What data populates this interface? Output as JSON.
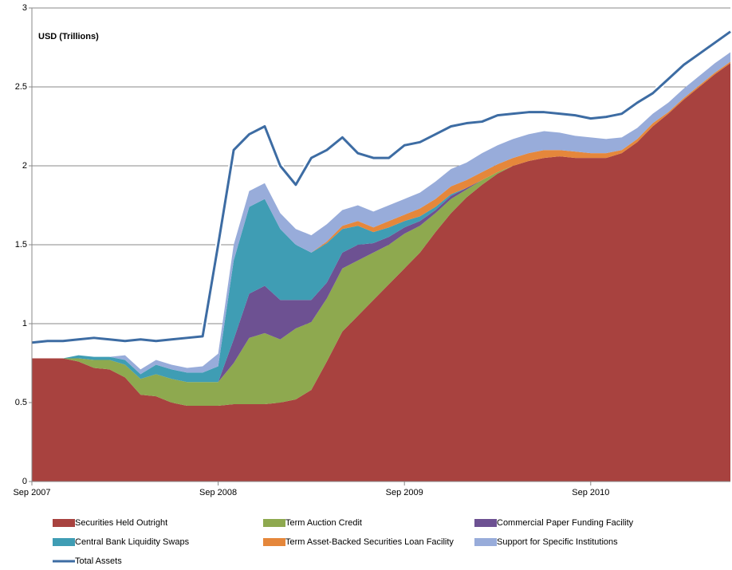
{
  "chart_data": {
    "type": "area",
    "stacked": true,
    "axis_label": "USD (Trillions)",
    "categories": [
      "Sep 2007",
      null,
      null,
      null,
      null,
      null,
      null,
      null,
      null,
      null,
      null,
      null,
      "Sep 2008",
      null,
      null,
      null,
      null,
      null,
      null,
      null,
      null,
      null,
      null,
      null,
      "Sep 2009",
      null,
      null,
      null,
      null,
      null,
      null,
      null,
      null,
      null,
      null,
      null,
      "Sep 2010",
      null,
      null,
      null,
      null,
      null,
      null,
      null,
      null,
      null
    ],
    "ylim": [
      0,
      3
    ],
    "yticks": [
      0,
      0.5,
      1,
      1.5,
      2,
      2.5,
      3
    ],
    "grid": true,
    "series": [
      {
        "name": "Securities Held Outright",
        "color": "#a8423f",
        "values": [
          0.78,
          0.78,
          0.78,
          0.76,
          0.72,
          0.71,
          0.66,
          0.55,
          0.54,
          0.5,
          0.48,
          0.48,
          0.48,
          0.49,
          0.49,
          0.49,
          0.5,
          0.52,
          0.58,
          0.76,
          0.95,
          1.05,
          1.15,
          1.25,
          1.35,
          1.45,
          1.58,
          1.7,
          1.8,
          1.88,
          1.95,
          2.0,
          2.03,
          2.05,
          2.06,
          2.05,
          2.05,
          2.05,
          2.08,
          2.15,
          2.25,
          2.33,
          2.42,
          2.5,
          2.58,
          2.65
        ]
      },
      {
        "name": "Term Auction Credit",
        "color": "#8ea94f",
        "values": [
          0,
          0,
          0,
          0.02,
          0.05,
          0.06,
          0.08,
          0.1,
          0.14,
          0.15,
          0.15,
          0.15,
          0.15,
          0.26,
          0.42,
          0.45,
          0.4,
          0.45,
          0.43,
          0.4,
          0.4,
          0.35,
          0.3,
          0.25,
          0.22,
          0.17,
          0.12,
          0.09,
          0.05,
          0.03,
          0.01,
          0,
          0,
          0,
          0,
          0,
          0,
          0,
          0,
          0,
          0,
          0,
          0,
          0,
          0,
          0
        ]
      },
      {
        "name": "Commercial Paper Funding Facility",
        "color": "#6d5192",
        "values": [
          0,
          0,
          0,
          0,
          0,
          0,
          0,
          0,
          0,
          0,
          0,
          0,
          0,
          0.15,
          0.28,
          0.3,
          0.25,
          0.18,
          0.14,
          0.1,
          0.1,
          0.1,
          0.06,
          0.05,
          0.04,
          0.03,
          0.02,
          0.02,
          0.01,
          0,
          0,
          0,
          0,
          0,
          0,
          0,
          0,
          0,
          0,
          0,
          0,
          0,
          0,
          0,
          0,
          0
        ]
      },
      {
        "name": "Central Bank Liquidity Swaps",
        "color": "#3f9db4",
        "values": [
          0,
          0,
          0,
          0.02,
          0.02,
          0.02,
          0.03,
          0.03,
          0.06,
          0.06,
          0.06,
          0.06,
          0.1,
          0.5,
          0.55,
          0.55,
          0.45,
          0.35,
          0.3,
          0.25,
          0.15,
          0.12,
          0.07,
          0.06,
          0.04,
          0.03,
          0.02,
          0.01,
          0,
          0,
          0,
          0,
          0,
          0,
          0,
          0,
          0,
          0,
          0,
          0,
          0,
          0,
          0,
          0,
          0,
          0
        ]
      },
      {
        "name": "Term Asset-Backed Securities Loan Facility",
        "color": "#e5873b",
        "values": [
          0,
          0,
          0,
          0,
          0,
          0,
          0,
          0,
          0,
          0,
          0,
          0,
          0,
          0,
          0,
          0,
          0,
          0,
          0,
          0.01,
          0.02,
          0.03,
          0.03,
          0.04,
          0.04,
          0.05,
          0.05,
          0.05,
          0.05,
          0.05,
          0.05,
          0.05,
          0.05,
          0.05,
          0.04,
          0.04,
          0.03,
          0.03,
          0.02,
          0.02,
          0.02,
          0.01,
          0.01,
          0.01,
          0.01,
          0.01
        ]
      },
      {
        "name": "Support for Specific Institutions",
        "color": "#98acda",
        "values": [
          0,
          0,
          0,
          0,
          0,
          0,
          0.03,
          0.03,
          0.03,
          0.03,
          0.03,
          0.04,
          0.08,
          0.1,
          0.1,
          0.1,
          0.1,
          0.1,
          0.11,
          0.11,
          0.1,
          0.1,
          0.1,
          0.1,
          0.1,
          0.1,
          0.11,
          0.11,
          0.11,
          0.12,
          0.12,
          0.12,
          0.12,
          0.12,
          0.11,
          0.1,
          0.1,
          0.09,
          0.08,
          0.07,
          0.06,
          0.06,
          0.06,
          0.06,
          0.06,
          0.06
        ]
      },
      {
        "name": "Total Assets",
        "type": "line",
        "color": "#3d6ca3",
        "values": [
          0.88,
          0.89,
          0.89,
          0.9,
          0.91,
          0.9,
          0.89,
          0.9,
          0.89,
          0.9,
          0.91,
          0.92,
          1.5,
          2.1,
          2.2,
          2.25,
          2.0,
          1.88,
          2.05,
          2.1,
          2.18,
          2.08,
          2.05,
          2.05,
          2.13,
          2.15,
          2.2,
          2.25,
          2.27,
          2.28,
          2.32,
          2.33,
          2.34,
          2.34,
          2.33,
          2.32,
          2.3,
          2.31,
          2.33,
          2.4,
          2.46,
          2.55,
          2.64,
          2.71,
          2.78,
          2.85
        ]
      }
    ]
  }
}
